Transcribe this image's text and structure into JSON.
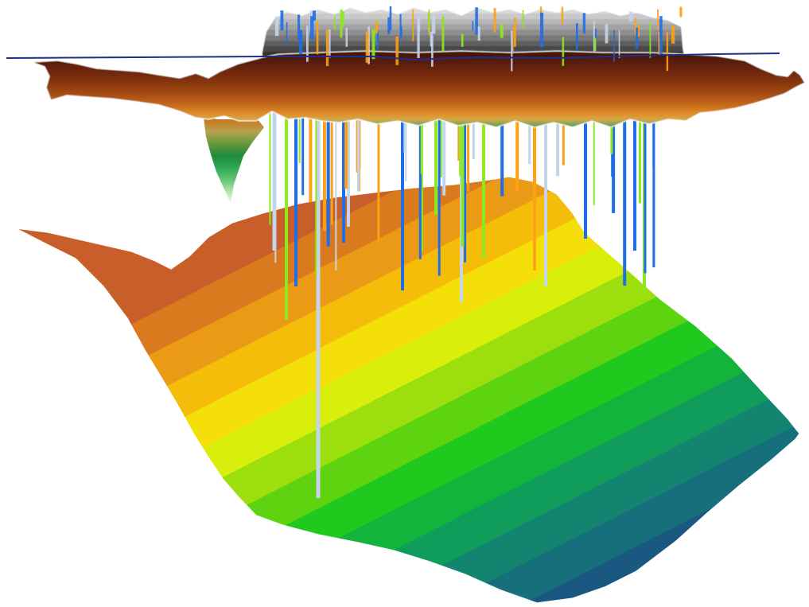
{
  "scene": {
    "kind": "3d-geologic-surface-model",
    "background": "#ffffff",
    "elements": [
      "upper-topography-surface",
      "lower-formation-surface",
      "well-boreholes",
      "horizontal-reference-line"
    ]
  },
  "colors": {
    "upper_surface_ramp": [
      "#3e1406",
      "#5e2108",
      "#7a3010",
      "#94440f",
      "#b45a12",
      "#d07a1f",
      "#e49a2e",
      "#c8b06a",
      "#5f8c3a",
      "#1f8a3c",
      "#2fa651",
      "#8fd38c",
      "#e9f4e6"
    ],
    "upper_top_band_ramp": [
      "#d9d9d9",
      "#c9c9c9",
      "#b7b7b7",
      "#a3a3a3",
      "#8e8e8e",
      "#777777",
      "#5f5f5f",
      "#4a4a4a",
      "#3a3027"
    ],
    "lower_surface_ramp": [
      "#c85e2a",
      "#d97a1e",
      "#ea9a14",
      "#f4bd0a",
      "#f5df08",
      "#d9ee0a",
      "#9ddf0d",
      "#5ed411",
      "#1fc91d",
      "#12b43b",
      "#109c5a",
      "#13846f",
      "#186f7c",
      "#1a5881",
      "#183f7c"
    ],
    "well_colors": [
      "#ffa114",
      "#8ee820",
      "#1f6ee8",
      "#c4d4ea"
    ],
    "reference_line": "#1c2f8a"
  },
  "wells": {
    "count": 60,
    "color_groups": [
      "orange",
      "green",
      "blue",
      "light-steel"
    ]
  }
}
